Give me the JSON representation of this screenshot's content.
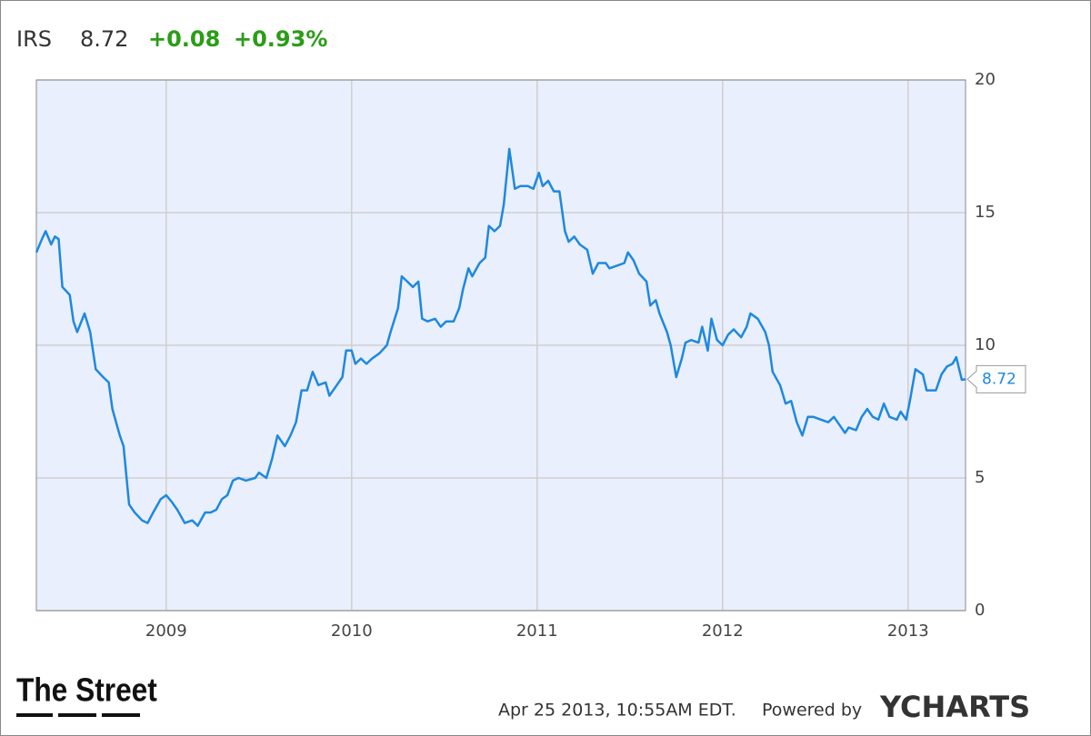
{
  "header": {
    "symbol": "IRS",
    "price": "8.72",
    "change": "+0.08",
    "change_percent": "+0.93%"
  },
  "chart_data": {
    "type": "line",
    "color": "#1e88e0",
    "grid": true,
    "x": [
      2008.3,
      2008.33,
      2008.35,
      2008.38,
      2008.4,
      2008.42,
      2008.44,
      2008.48,
      2008.5,
      2008.52,
      2008.56,
      2008.59,
      2008.62,
      2008.66,
      2008.69,
      2008.71,
      2008.75,
      2008.77,
      2008.8,
      2008.83,
      2008.87,
      2008.9,
      2008.93,
      2008.97,
      2009.0,
      2009.03,
      2009.06,
      2009.1,
      2009.14,
      2009.17,
      2009.21,
      2009.24,
      2009.27,
      2009.3,
      2009.33,
      2009.36,
      2009.39,
      2009.43,
      2009.48,
      2009.5,
      2009.54,
      2009.57,
      2009.6,
      2009.64,
      2009.67,
      2009.7,
      2009.73,
      2009.76,
      2009.79,
      2009.82,
      2009.86,
      2009.88,
      2009.92,
      2009.95,
      2009.97,
      2010.0,
      2010.02,
      2010.05,
      2010.08,
      2010.11,
      2010.15,
      2010.19,
      2010.21,
      2010.25,
      2010.27,
      2010.3,
      2010.33,
      2010.36,
      2010.38,
      2010.41,
      2010.45,
      2010.48,
      2010.51,
      2010.55,
      2010.58,
      2010.6,
      2010.63,
      2010.65,
      2010.69,
      2010.72,
      2010.74,
      2010.77,
      2010.8,
      2010.82,
      2010.85,
      2010.88,
      2010.91,
      2010.95,
      2010.98,
      2011.01,
      2011.03,
      2011.06,
      2011.09,
      2011.12,
      2011.15,
      2011.17,
      2011.2,
      2011.23,
      2011.27,
      2011.3,
      2011.33,
      2011.37,
      2011.39,
      2011.43,
      2011.47,
      2011.49,
      2011.52,
      2011.55,
      2011.59,
      2011.61,
      2011.64,
      2011.66,
      2011.7,
      2011.72,
      2011.75,
      2011.78,
      2011.8,
      2011.83,
      2011.87,
      2011.89,
      2011.92,
      2011.94,
      2011.97,
      2012.0,
      2012.03,
      2012.06,
      2012.1,
      2012.13,
      2012.15,
      2012.19,
      2012.23,
      2012.25,
      2012.27,
      2012.31,
      2012.34,
      2012.37,
      2012.4,
      2012.43,
      2012.46,
      2012.49,
      2012.53,
      2012.57,
      2012.6,
      2012.63,
      2012.66,
      2012.68,
      2012.72,
      2012.75,
      2012.78,
      2012.81,
      2012.84,
      2012.87,
      2012.9,
      2012.94,
      2012.96,
      2012.99,
      2013.01,
      2013.04,
      2013.08,
      2013.1,
      2013.15,
      2013.18,
      2013.21,
      2013.24,
      2013.26,
      2013.29,
      2013.31
    ],
    "values": [
      13.5,
      14.0,
      14.3,
      13.8,
      14.1,
      14.0,
      12.2,
      11.9,
      10.9,
      10.5,
      11.2,
      10.5,
      9.1,
      8.8,
      8.6,
      7.6,
      6.6,
      6.2,
      4.0,
      3.7,
      3.4,
      3.3,
      3.7,
      4.2,
      4.35,
      4.1,
      3.8,
      3.3,
      3.4,
      3.2,
      3.7,
      3.7,
      3.8,
      4.2,
      4.35,
      4.9,
      5.0,
      4.9,
      5.0,
      5.2,
      5.0,
      5.7,
      6.6,
      6.2,
      6.6,
      7.1,
      8.3,
      8.3,
      9.0,
      8.5,
      8.6,
      8.1,
      8.5,
      8.8,
      9.8,
      9.8,
      9.3,
      9.5,
      9.3,
      9.5,
      9.7,
      10.0,
      10.5,
      11.4,
      12.6,
      12.4,
      12.2,
      12.4,
      11.0,
      10.9,
      11.0,
      10.7,
      10.9,
      10.9,
      11.4,
      12.1,
      12.9,
      12.6,
      13.1,
      13.3,
      14.5,
      14.3,
      14.5,
      15.3,
      17.4,
      15.9,
      16.0,
      16.0,
      15.9,
      16.5,
      16.0,
      16.2,
      15.8,
      15.8,
      14.3,
      13.9,
      14.1,
      13.8,
      13.6,
      12.7,
      13.1,
      13.1,
      12.9,
      13.0,
      13.1,
      13.5,
      13.2,
      12.7,
      12.4,
      11.5,
      11.7,
      11.2,
      10.5,
      10.0,
      8.8,
      9.5,
      10.1,
      10.2,
      10.1,
      10.7,
      9.8,
      11.0,
      10.2,
      10.0,
      10.4,
      10.6,
      10.3,
      10.7,
      11.2,
      11.0,
      10.5,
      10.0,
      9.0,
      8.5,
      7.8,
      7.9,
      7.1,
      6.6,
      7.3,
      7.3,
      7.2,
      7.1,
      7.3,
      7.0,
      6.7,
      6.9,
      6.8,
      7.3,
      7.6,
      7.3,
      7.2,
      7.8,
      7.3,
      7.2,
      7.5,
      7.2,
      7.9,
      9.1,
      8.9,
      8.3,
      8.3,
      8.9,
      9.2,
      9.3,
      9.55,
      8.7,
      8.72
    ],
    "xlim": [
      2008.3,
      2013.31
    ],
    "xticks": [
      2009,
      2010,
      2011,
      2012,
      2013
    ],
    "ylim": [
      0,
      20
    ],
    "yticks": [
      0,
      5,
      10,
      15,
      20
    ]
  },
  "footer": {
    "brand": "The Street",
    "timestamp": "Apr 25 2013, 10:55AM EDT.",
    "powered_by": "Powered by",
    "provider": "YCHARTS"
  }
}
